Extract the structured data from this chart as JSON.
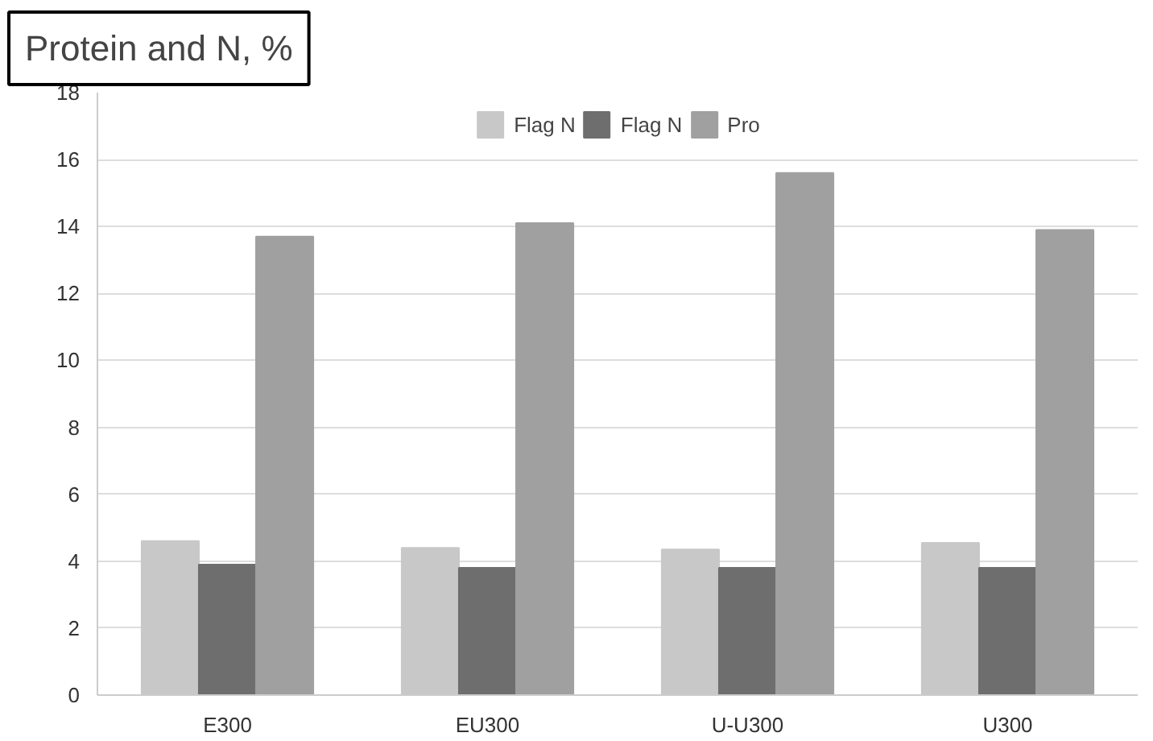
{
  "chart_data": {
    "type": "bar",
    "title": "Protein and N, %",
    "categories": [
      "E300",
      "EU300",
      "U-U300",
      "U300"
    ],
    "series": [
      {
        "name": "Flag N",
        "color": "#c8c8c8",
        "values": [
          4.6,
          4.4,
          4.35,
          4.55
        ]
      },
      {
        "name": "Flag N",
        "color": "#6e6e6e",
        "values": [
          3.9,
          3.8,
          3.8,
          3.8
        ]
      },
      {
        "name": "Pro",
        "color": "#a0a0a0",
        "values": [
          13.7,
          14.1,
          15.6,
          13.9
        ]
      }
    ],
    "ylim": [
      0,
      18
    ],
    "yticks": [
      0,
      2,
      4,
      6,
      8,
      10,
      12,
      14,
      16,
      18
    ],
    "grid": "y",
    "legend": "top"
  }
}
